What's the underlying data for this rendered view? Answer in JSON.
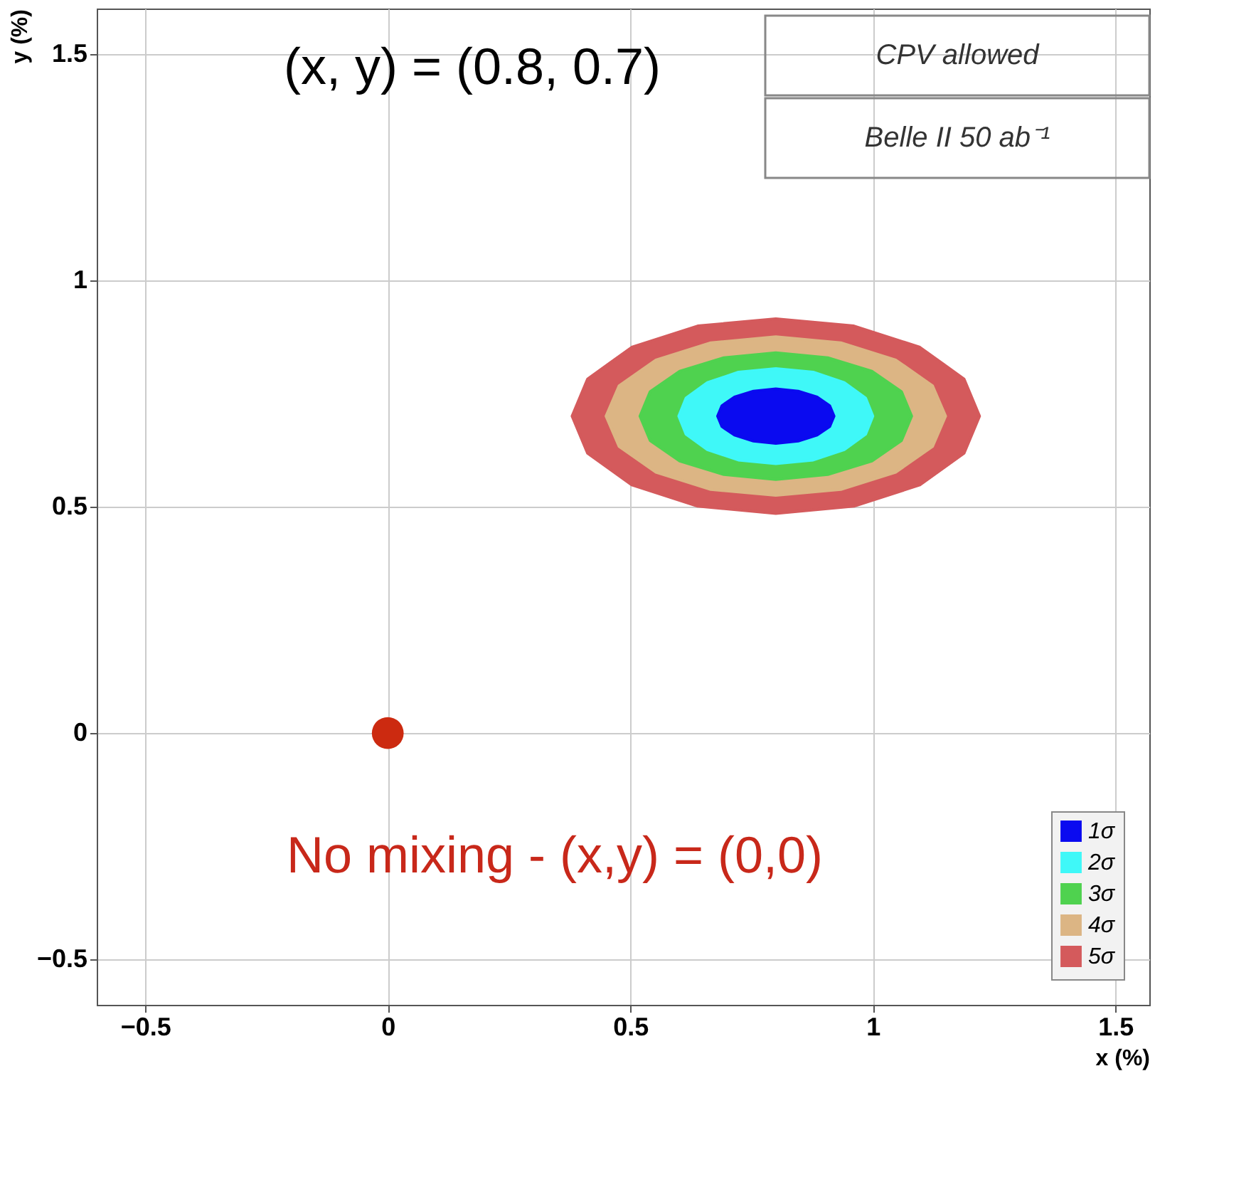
{
  "chart_data": {
    "type": "area",
    "xlabel": "x (%)",
    "ylabel": "y (%)",
    "xlim": [
      -0.6,
      1.57
    ],
    "ylim": [
      -0.6,
      1.6
    ],
    "xticks": [
      -0.5,
      0,
      0.5,
      1,
      1.5
    ],
    "yticks": [
      -0.5,
      0,
      0.5,
      1,
      1.5
    ],
    "grid": true,
    "legend": "bottom right",
    "annotations": [
      "CPV allowed",
      "Belle II 50 ab⁻¹",
      "(x, y) = (0.8, 0.7)",
      "No mixing - (x,y) = (0,0)"
    ],
    "series": [
      {
        "name": "1σ",
        "color": "#0a0af0",
        "x": [
          0.92,
          0.911,
          0.885,
          0.846,
          0.8,
          0.754,
          0.715,
          0.689,
          0.68,
          0.689,
          0.715,
          0.754,
          0.8,
          0.846,
          0.885,
          0.911
        ],
        "values": [
          0.7,
          0.723,
          0.742,
          0.755,
          0.76,
          0.755,
          0.742,
          0.723,
          0.7,
          0.677,
          0.658,
          0.645,
          0.64,
          0.645,
          0.658,
          0.677
        ]
      },
      {
        "name": "2σ",
        "color": "#3ff8f8",
        "x": [
          1.0,
          0.985,
          0.941,
          0.877,
          0.8,
          0.723,
          0.659,
          0.615,
          0.6,
          0.615,
          0.659,
          0.723,
          0.8,
          0.877,
          0.941,
          0.985
        ],
        "values": [
          0.7,
          0.74,
          0.774,
          0.797,
          0.805,
          0.797,
          0.774,
          0.74,
          0.7,
          0.66,
          0.626,
          0.603,
          0.595,
          0.603,
          0.626,
          0.66
        ]
      },
      {
        "name": "3σ",
        "color": "#4fd24f",
        "x": [
          1.08,
          1.059,
          0.998,
          0.907,
          0.8,
          0.693,
          0.602,
          0.541,
          0.52,
          0.541,
          0.602,
          0.693,
          0.8,
          0.907,
          0.998,
          1.059
        ],
        "values": [
          0.7,
          0.754,
          0.799,
          0.829,
          0.84,
          0.829,
          0.799,
          0.754,
          0.7,
          0.646,
          0.601,
          0.571,
          0.56,
          0.571,
          0.601,
          0.646
        ]
      },
      {
        "name": "4σ",
        "color": "#dcb584",
        "x": [
          1.15,
          1.123,
          1.047,
          0.934,
          0.8,
          0.666,
          0.553,
          0.477,
          0.45,
          0.477,
          0.553,
          0.666,
          0.8,
          0.934,
          1.047,
          1.123
        ],
        "values": [
          0.7,
          0.767,
          0.824,
          0.862,
          0.875,
          0.862,
          0.824,
          0.767,
          0.7,
          0.633,
          0.576,
          0.538,
          0.525,
          0.538,
          0.576,
          0.633
        ]
      },
      {
        "name": "5σ",
        "color": "#d45a5c",
        "x": [
          1.22,
          1.188,
          1.097,
          0.961,
          0.8,
          0.639,
          0.503,
          0.412,
          0.38,
          0.412,
          0.503,
          0.639,
          0.8,
          0.961,
          1.097,
          1.188
        ],
        "values": [
          0.7,
          0.782,
          0.852,
          0.899,
          0.915,
          0.899,
          0.852,
          0.782,
          0.7,
          0.618,
          0.548,
          0.501,
          0.485,
          0.501,
          0.548,
          0.618
        ]
      },
      {
        "color": "#cc2a10",
        "type": "scatter",
        "x": [
          0
        ],
        "values": [
          0
        ]
      }
    ]
  }
}
